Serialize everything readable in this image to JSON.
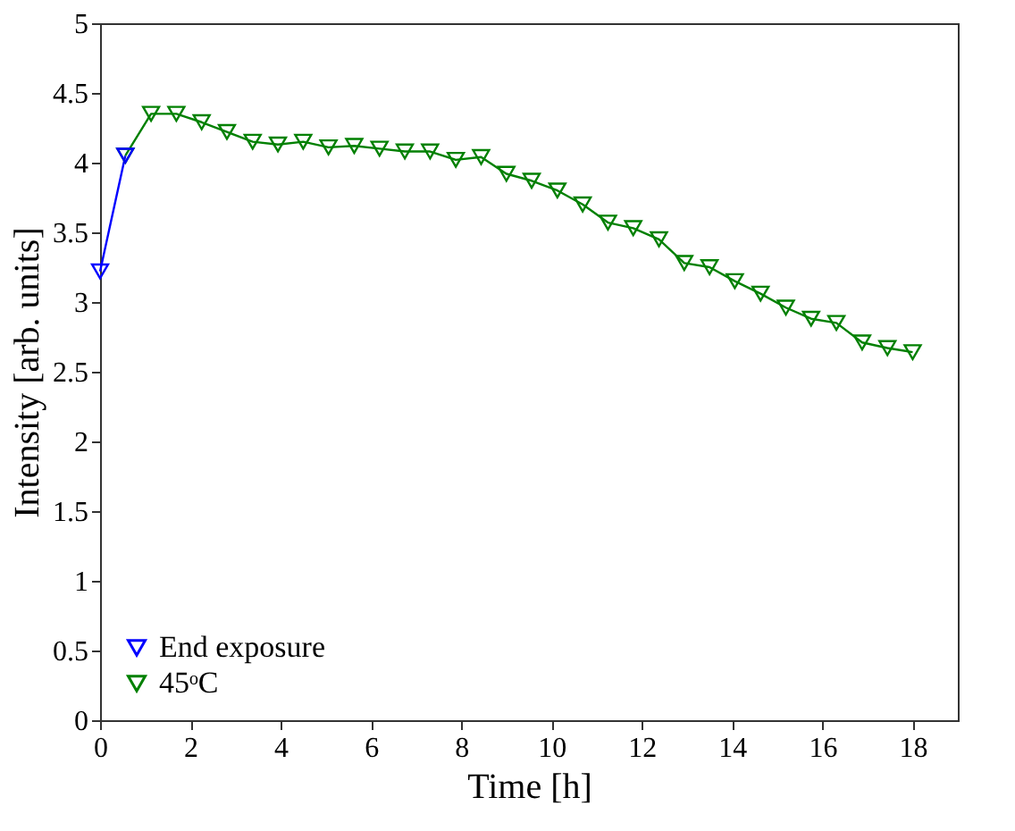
{
  "chart_data": {
    "type": "line",
    "xlabel": "Time [h]",
    "ylabel": "Intensity [arb. units]",
    "xlim": [
      0,
      19
    ],
    "xticks": [
      0,
      2,
      4,
      6,
      8,
      10,
      12,
      14,
      16,
      18
    ],
    "ylim": [
      0,
      5
    ],
    "yticks": [
      0,
      0.5,
      1,
      1.5,
      2,
      2.5,
      3,
      3.5,
      4,
      4.5,
      5
    ],
    "grid": false,
    "legend": "bottom left",
    "marker": "triangle",
    "line_style": "solid",
    "series": [
      {
        "name": "End exposure",
        "color": "#0000ff",
        "x": [
          0,
          0.56
        ],
        "values": [
          3.22,
          4.05
        ]
      },
      {
        "name": "45ᵒC",
        "color": "#008000",
        "x": [
          0.56,
          1.13,
          1.69,
          2.25,
          2.81,
          3.38,
          3.94,
          4.5,
          5.06,
          5.63,
          6.19,
          6.75,
          7.31,
          7.88,
          8.44,
          9.0,
          9.56,
          10.13,
          10.69,
          11.25,
          11.81,
          12.38,
          12.94,
          13.5,
          14.06,
          14.63,
          15.19,
          15.75,
          16.31,
          16.88,
          17.44,
          18.0
        ],
        "values": [
          4.05,
          4.35,
          4.35,
          4.29,
          4.22,
          4.15,
          4.13,
          4.15,
          4.11,
          4.12,
          4.1,
          4.08,
          4.08,
          4.02,
          4.04,
          3.92,
          3.87,
          3.8,
          3.7,
          3.57,
          3.53,
          3.45,
          3.28,
          3.25,
          3.15,
          3.06,
          2.96,
          2.88,
          2.85,
          2.71,
          2.67,
          2.64
        ]
      }
    ]
  }
}
